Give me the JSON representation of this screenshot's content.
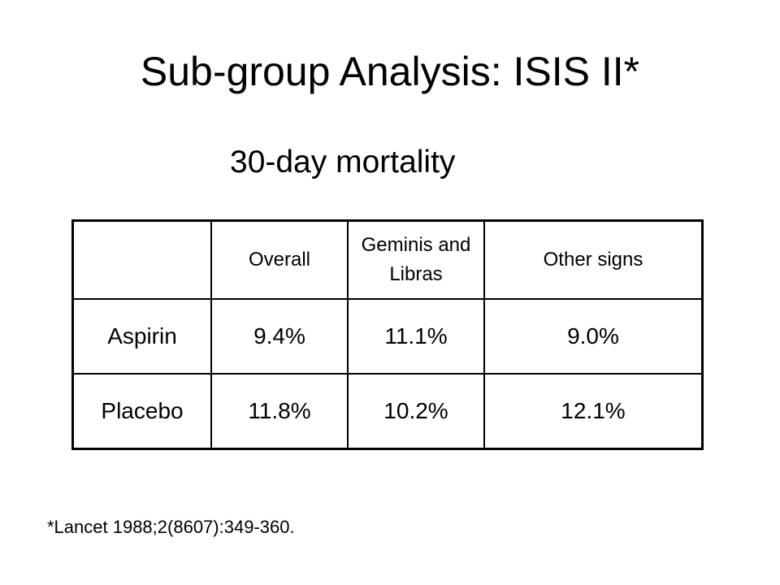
{
  "slide": {
    "title": "Sub-group Analysis: ISIS II*",
    "subtitle": "30-day mortality",
    "footnote": "*Lancet 1988;2(8607):349-360."
  },
  "table": {
    "columns": [
      "",
      "Overall",
      "Geminis and Libras",
      "Other signs"
    ],
    "rows": [
      {
        "label": "Aspirin",
        "values": [
          "9.4%",
          "11.1%",
          "9.0%"
        ]
      },
      {
        "label": "Placebo",
        "values": [
          "11.8%",
          "10.2%",
          "12.1%"
        ]
      }
    ]
  }
}
